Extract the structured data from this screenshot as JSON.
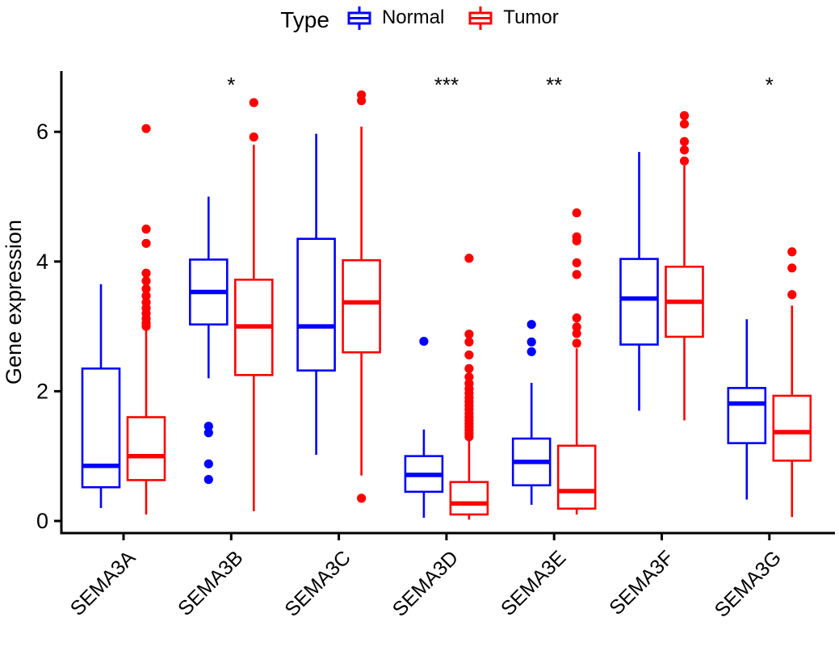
{
  "chart_data": {
    "type": "boxplot",
    "title": "",
    "legend": {
      "title": "Type",
      "items": [
        {
          "label": "Normal",
          "color": "#0000ff"
        },
        {
          "label": "Tumor",
          "color": "#ff0000"
        }
      ]
    },
    "y_axis": {
      "label": "Gene expression",
      "ticks": [
        0,
        2,
        4,
        6
      ],
      "range": [
        -0.2,
        6.95
      ],
      "grid": false
    },
    "x_axis": {
      "label": "",
      "tick_angle_deg": 45
    },
    "genes": [
      {
        "name": "SEMA3A",
        "significance": "",
        "normal": {
          "whisker_low": 0.2,
          "q1": 0.52,
          "median": 0.85,
          "q3": 2.35,
          "whisker_high": 3.65,
          "outliers": []
        },
        "tumor": {
          "whisker_low": 0.1,
          "q1": 0.63,
          "median": 1.0,
          "q3": 1.6,
          "whisker_high": 2.95,
          "outliers": [
            6.05,
            4.5,
            4.28,
            3.82,
            3.7,
            3.58,
            3.47,
            3.37,
            3.28,
            3.2,
            3.12,
            3.05,
            3.0
          ]
        }
      },
      {
        "name": "SEMA3B",
        "significance": "*",
        "normal": {
          "whisker_low": 2.2,
          "q1": 3.03,
          "median": 3.53,
          "q3": 4.03,
          "whisker_high": 5.0,
          "outliers": [
            1.46,
            1.36,
            0.88,
            0.64
          ]
        },
        "tumor": {
          "whisker_low": 0.15,
          "q1": 2.25,
          "median": 3.0,
          "q3": 3.72,
          "whisker_high": 5.8,
          "outliers": [
            6.45,
            5.92
          ]
        }
      },
      {
        "name": "SEMA3C",
        "significance": "",
        "normal": {
          "whisker_low": 1.02,
          "q1": 2.32,
          "median": 3.0,
          "q3": 4.35,
          "whisker_high": 5.97,
          "outliers": []
        },
        "tumor": {
          "whisker_low": 0.7,
          "q1": 2.6,
          "median": 3.37,
          "q3": 4.02,
          "whisker_high": 6.08,
          "outliers": [
            6.57,
            6.48,
            0.35
          ]
        }
      },
      {
        "name": "SEMA3D",
        "significance": "***",
        "normal": {
          "whisker_low": 0.05,
          "q1": 0.45,
          "median": 0.71,
          "q3": 1.0,
          "whisker_high": 1.41,
          "outliers": [
            2.77
          ]
        },
        "tumor": {
          "whisker_low": 0.02,
          "q1": 0.1,
          "median": 0.27,
          "q3": 0.6,
          "whisker_high": 1.28,
          "outliers": [
            4.05,
            2.88,
            2.76,
            2.56,
            2.35,
            2.22,
            2.12,
            2.04,
            1.97,
            1.9,
            1.84,
            1.78,
            1.72,
            1.66,
            1.6,
            1.55,
            1.5,
            1.45,
            1.4,
            1.35,
            1.3
          ]
        }
      },
      {
        "name": "SEMA3E",
        "significance": "**",
        "normal": {
          "whisker_low": 0.25,
          "q1": 0.55,
          "median": 0.91,
          "q3": 1.27,
          "whisker_high": 2.13,
          "outliers": [
            3.03,
            2.76,
            2.61
          ]
        },
        "tumor": {
          "whisker_low": 0.1,
          "q1": 0.19,
          "median": 0.46,
          "q3": 1.16,
          "whisker_high": 2.66,
          "outliers": [
            4.75,
            4.38,
            4.32,
            3.98,
            3.8,
            3.13,
            2.99,
            2.89,
            2.74
          ]
        }
      },
      {
        "name": "SEMA3F",
        "significance": "",
        "normal": {
          "whisker_low": 1.7,
          "q1": 2.72,
          "median": 3.43,
          "q3": 4.04,
          "whisker_high": 5.69,
          "outliers": []
        },
        "tumor": {
          "whisker_low": 1.55,
          "q1": 2.84,
          "median": 3.38,
          "q3": 3.92,
          "whisker_high": 5.48,
          "outliers": [
            6.25,
            6.12,
            5.85,
            5.72,
            5.55
          ]
        }
      },
      {
        "name": "SEMA3G",
        "significance": "*",
        "normal": {
          "whisker_low": 0.33,
          "q1": 1.2,
          "median": 1.81,
          "q3": 2.05,
          "whisker_high": 3.11,
          "outliers": []
        },
        "tumor": {
          "whisker_low": 0.06,
          "q1": 0.93,
          "median": 1.37,
          "q3": 1.93,
          "whisker_high": 3.32,
          "outliers": [
            4.15,
            3.9,
            3.49
          ]
        }
      }
    ]
  }
}
